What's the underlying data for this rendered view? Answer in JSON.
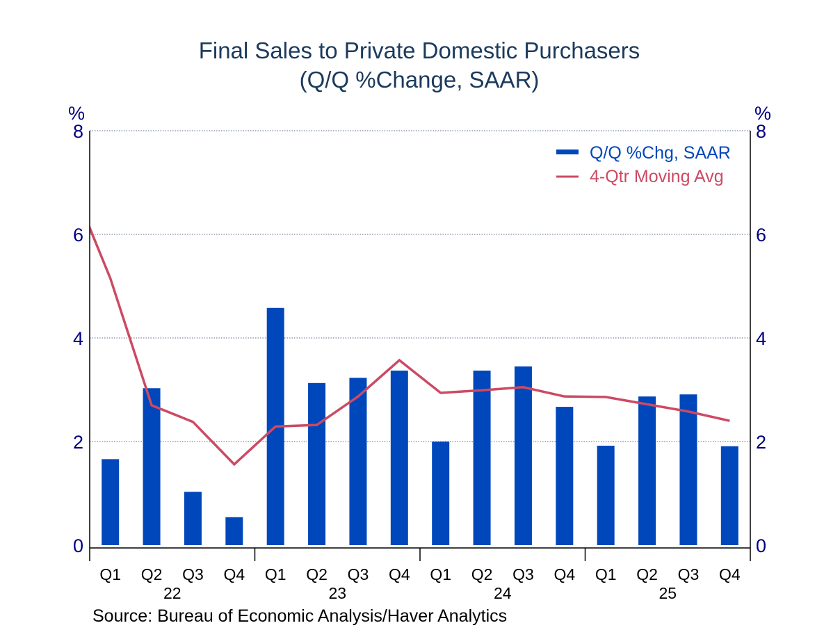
{
  "chart_data": {
    "type": "bar",
    "title": "Final Sales to Private Domestic Purchasers",
    "subtitle": "(Q/Q %Change, SAAR)",
    "xlabel": "",
    "ylabel_left": "%",
    "ylabel_right": "%",
    "ylim": [
      0,
      8
    ],
    "yticks": [
      0,
      2,
      4,
      6,
      8
    ],
    "grid": true,
    "legend_position": "top-right",
    "categories": [
      "Q1",
      "Q2",
      "Q3",
      "Q4",
      "Q1",
      "Q2",
      "Q3",
      "Q4",
      "Q1",
      "Q2",
      "Q3",
      "Q4",
      "Q1",
      "Q2",
      "Q3",
      "Q4"
    ],
    "years": [
      {
        "label": "22",
        "quarters": 4
      },
      {
        "label": "23",
        "quarters": 4
      },
      {
        "label": "24",
        "quarters": 4
      },
      {
        "label": "25",
        "quarters": 4
      }
    ],
    "series": [
      {
        "name": "Q/Q %Chg, SAAR",
        "kind": "bar",
        "color": "#0047bb",
        "values": [
          1.66,
          3.03,
          1.03,
          0.54,
          4.58,
          3.13,
          3.23,
          3.37,
          2.0,
          3.37,
          3.45,
          2.67,
          1.92,
          2.87,
          2.91,
          1.91
        ]
      },
      {
        "name": "4-Qtr Moving Avg",
        "kind": "line",
        "color": "#cc4a64",
        "prior_value": 7.1,
        "values": [
          5.15,
          2.7,
          2.38,
          1.56,
          2.29,
          2.32,
          2.87,
          3.57,
          2.94,
          2.99,
          3.05,
          2.87,
          2.86,
          2.72,
          2.58,
          2.4
        ]
      }
    ],
    "source": "Source:  Bureau of Economic Analysis/Haver Analytics"
  }
}
